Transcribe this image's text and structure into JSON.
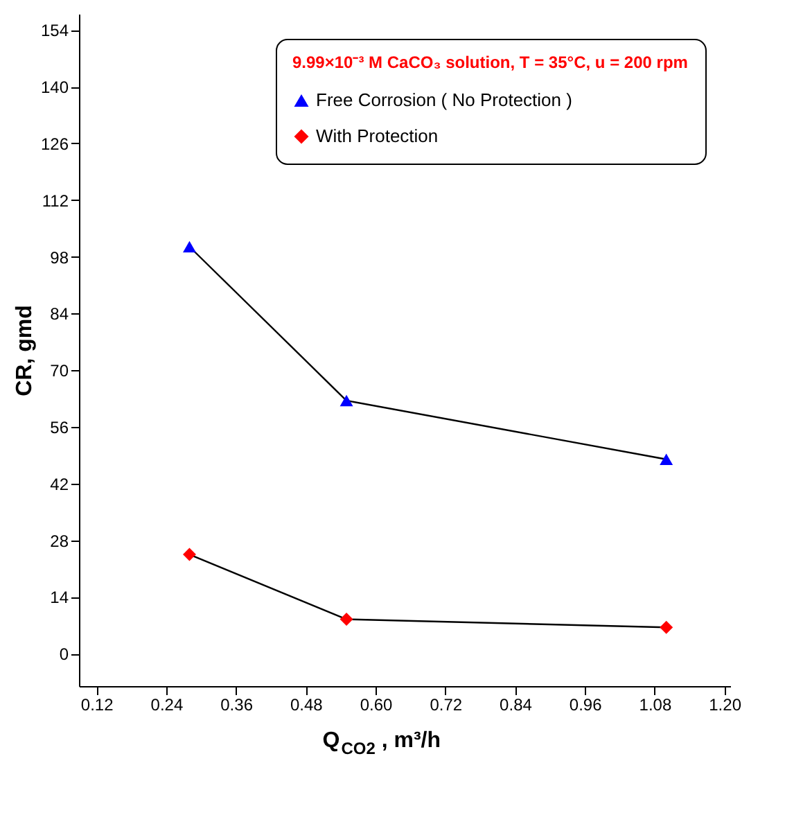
{
  "chart_data": {
    "type": "line",
    "xlabel": "Q$_{CO2}$, m³/h",
    "ylabel": "CR, gmd",
    "legend_title": "9.99×10⁻³ M CaCO₃ solution, T = 35°C, u = 200 rpm",
    "x": [
      0.28,
      0.55,
      1.1
    ],
    "series": [
      {
        "name": "Free Corrosion ( No Protection )",
        "color": "#0000ff",
        "marker": "triangle",
        "values": [
          100.5,
          62.5,
          48
        ]
      },
      {
        "name": "With Protection",
        "color": "#ff0000",
        "marker": "diamond",
        "values": [
          24.5,
          8.5,
          6.5
        ]
      }
    ],
    "xlim": [
      0.09,
      1.21
    ],
    "xticks": [
      0.12,
      0.24,
      0.36,
      0.48,
      {
        "value": 0.6,
        "label": "0.60"
      },
      0.72,
      0.84,
      0.96,
      1.08,
      {
        "value": 1.2,
        "label": "1.20"
      }
    ],
    "ylim": [
      -8,
      158
    ],
    "yticks": [
      0,
      14,
      28,
      42,
      56,
      70,
      84,
      98,
      112,
      126,
      140,
      154
    ],
    "grid": false,
    "legend": "top right",
    "line_style": "solid"
  }
}
